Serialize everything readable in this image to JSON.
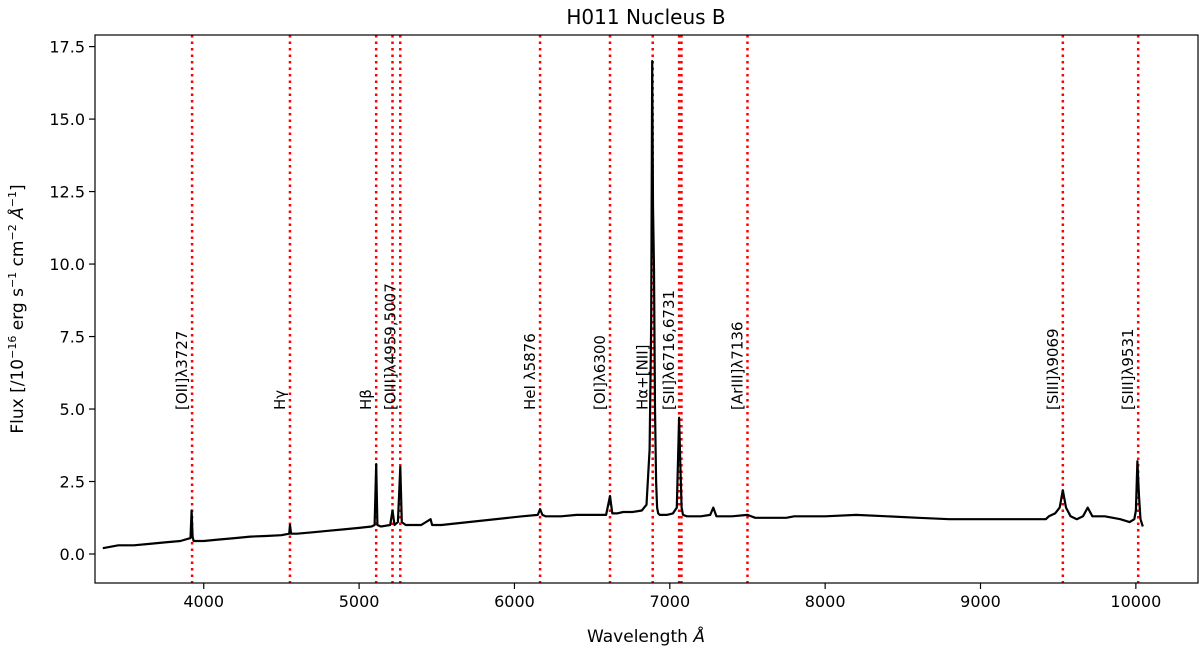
{
  "chart_data": {
    "type": "line",
    "title": "H011 Nucleus B",
    "xlabel_text": "Wavelength",
    "xlabel_unit": "Å",
    "ylabel_text": "Flux  [/10",
    "ylabel_exp1": "−16",
    "ylabel_mid1": " erg s",
    "ylabel_exp2": "−1",
    "ylabel_mid2": " cm",
    "ylabel_exp3": "−2",
    "ylabel_unit": " Å",
    "ylabel_exp4": "−1",
    "ylabel_end": "]",
    "xlim": [
      3300,
      10400
    ],
    "ylim": [
      -1.0,
      17.9
    ],
    "xticks": [
      4000,
      5000,
      6000,
      7000,
      8000,
      9000,
      10000
    ],
    "yticks": [
      0.0,
      2.5,
      5.0,
      7.5,
      10.0,
      12.5,
      15.0,
      17.5
    ],
    "xtick_labels": [
      "4000",
      "5000",
      "6000",
      "7000",
      "8000",
      "9000",
      "10000"
    ],
    "ytick_labels": [
      "0.0",
      "2.5",
      "5.0",
      "7.5",
      "10.0",
      "12.5",
      "15.0",
      "17.5"
    ],
    "grid": false,
    "line_color": "#000000",
    "marker_color": "#ff0000",
    "emission_lines": [
      {
        "label": "[OII]λ3727",
        "x": 3925
      },
      {
        "label": "Hγ",
        "x": 4555
      },
      {
        "label": "Hβ",
        "x": 5110
      },
      {
        "label": "",
        "x": 5215
      },
      {
        "label": "[OIII]λ4959,5007",
        "x": 5265
      },
      {
        "label": "HeI λ5876",
        "x": 6165
      },
      {
        "label": "[OI]λ6300",
        "x": 6615
      },
      {
        "label": "Hα+[NII]",
        "x": 6890
      },
      {
        "label": "[SII]λ6716,6731",
        "x": 7060
      },
      {
        "label": "",
        "x": 7075
      },
      {
        "label": "[ArIII]λ7136",
        "x": 7500
      },
      {
        "label": "[SIII]λ9069",
        "x": 9530
      },
      {
        "label": "[SIII]λ9531",
        "x": 10015
      }
    ],
    "series": [
      {
        "x": [
          3350,
          3450,
          3550,
          3650,
          3750,
          3850,
          3915,
          3922,
          3928,
          3935,
          4000,
          4100,
          4200,
          4300,
          4400,
          4500,
          4550,
          4555,
          4562,
          4600,
          4700,
          4800,
          4900,
          5000,
          5080,
          5100,
          5110,
          5118,
          5140,
          5200,
          5215,
          5228,
          5250,
          5265,
          5275,
          5300,
          5400,
          5460,
          5470,
          5530,
          6050,
          6150,
          6165,
          6180,
          6200,
          6300,
          6400,
          6500,
          6590,
          6615,
          6630,
          6660,
          6700,
          6760,
          6820,
          6850,
          6870,
          6880,
          6887,
          6892,
          6898,
          6905,
          6912,
          6918,
          6925,
          6935,
          6950,
          6980,
          7020,
          7045,
          7060,
          7068,
          7076,
          7085,
          7110,
          7200,
          7260,
          7280,
          7300,
          7400,
          7500,
          7550,
          7750,
          7800,
          8000,
          8200,
          8400,
          8600,
          8800,
          8950,
          9000,
          9420,
          9440,
          9480,
          9510,
          9530,
          9550,
          9580,
          9620,
          9660,
          9690,
          9720,
          9800,
          9900,
          9960,
          9990,
          10000,
          10010,
          10020,
          10030,
          10045
        ],
        "y": [
          0.2,
          0.3,
          0.3,
          0.35,
          0.4,
          0.45,
          0.55,
          1.5,
          0.6,
          0.45,
          0.45,
          0.5,
          0.55,
          0.6,
          0.62,
          0.65,
          0.7,
          1.0,
          0.7,
          0.7,
          0.75,
          0.8,
          0.85,
          0.9,
          0.95,
          1.0,
          3.1,
          1.0,
          0.95,
          1.0,
          1.5,
          1.0,
          1.1,
          3.0,
          1.1,
          1.0,
          1.0,
          1.2,
          1.0,
          1.0,
          1.3,
          1.35,
          1.55,
          1.35,
          1.3,
          1.3,
          1.35,
          1.35,
          1.35,
          2.0,
          1.4,
          1.4,
          1.45,
          1.45,
          1.5,
          1.7,
          3.6,
          8.0,
          17.0,
          12.0,
          9.8,
          5.0,
          2.5,
          1.6,
          1.4,
          1.35,
          1.35,
          1.35,
          1.4,
          1.6,
          4.7,
          3.0,
          1.6,
          1.35,
          1.3,
          1.3,
          1.35,
          1.6,
          1.3,
          1.3,
          1.35,
          1.25,
          1.25,
          1.3,
          1.3,
          1.35,
          1.3,
          1.25,
          1.2,
          1.2,
          1.2,
          1.2,
          1.3,
          1.4,
          1.6,
          2.2,
          1.6,
          1.3,
          1.2,
          1.3,
          1.6,
          1.3,
          1.3,
          1.2,
          1.1,
          1.2,
          1.5,
          3.2,
          2.0,
          1.2,
          0.95
        ]
      }
    ]
  }
}
